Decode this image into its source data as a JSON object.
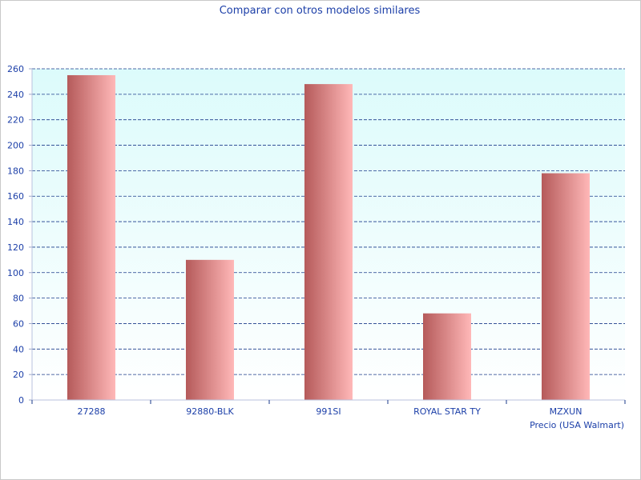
{
  "chart_data": {
    "type": "bar",
    "title": "Comparar con otros modelos similares",
    "xlabel": "Precio (USA Walmart)",
    "ylabel": "",
    "categories": [
      "27288",
      "92880-BLK",
      "991SI",
      "ROYAL STAR TY",
      "MZXUN"
    ],
    "values": [
      255,
      110,
      248,
      68,
      178
    ],
    "ylim": [
      0,
      260
    ],
    "yticks": [
      0,
      20,
      40,
      60,
      80,
      100,
      120,
      140,
      160,
      180,
      200,
      220,
      240,
      260
    ],
    "grid": true,
    "legend": "none",
    "colors": {
      "bar_dark": "#b55a5a",
      "bar_light": "#ffb8b8",
      "plot_top": "#dcfbfb",
      "plot_bottom": "#ffffff",
      "grid": "#1a3a8a",
      "text": "#1c3fa8"
    }
  }
}
